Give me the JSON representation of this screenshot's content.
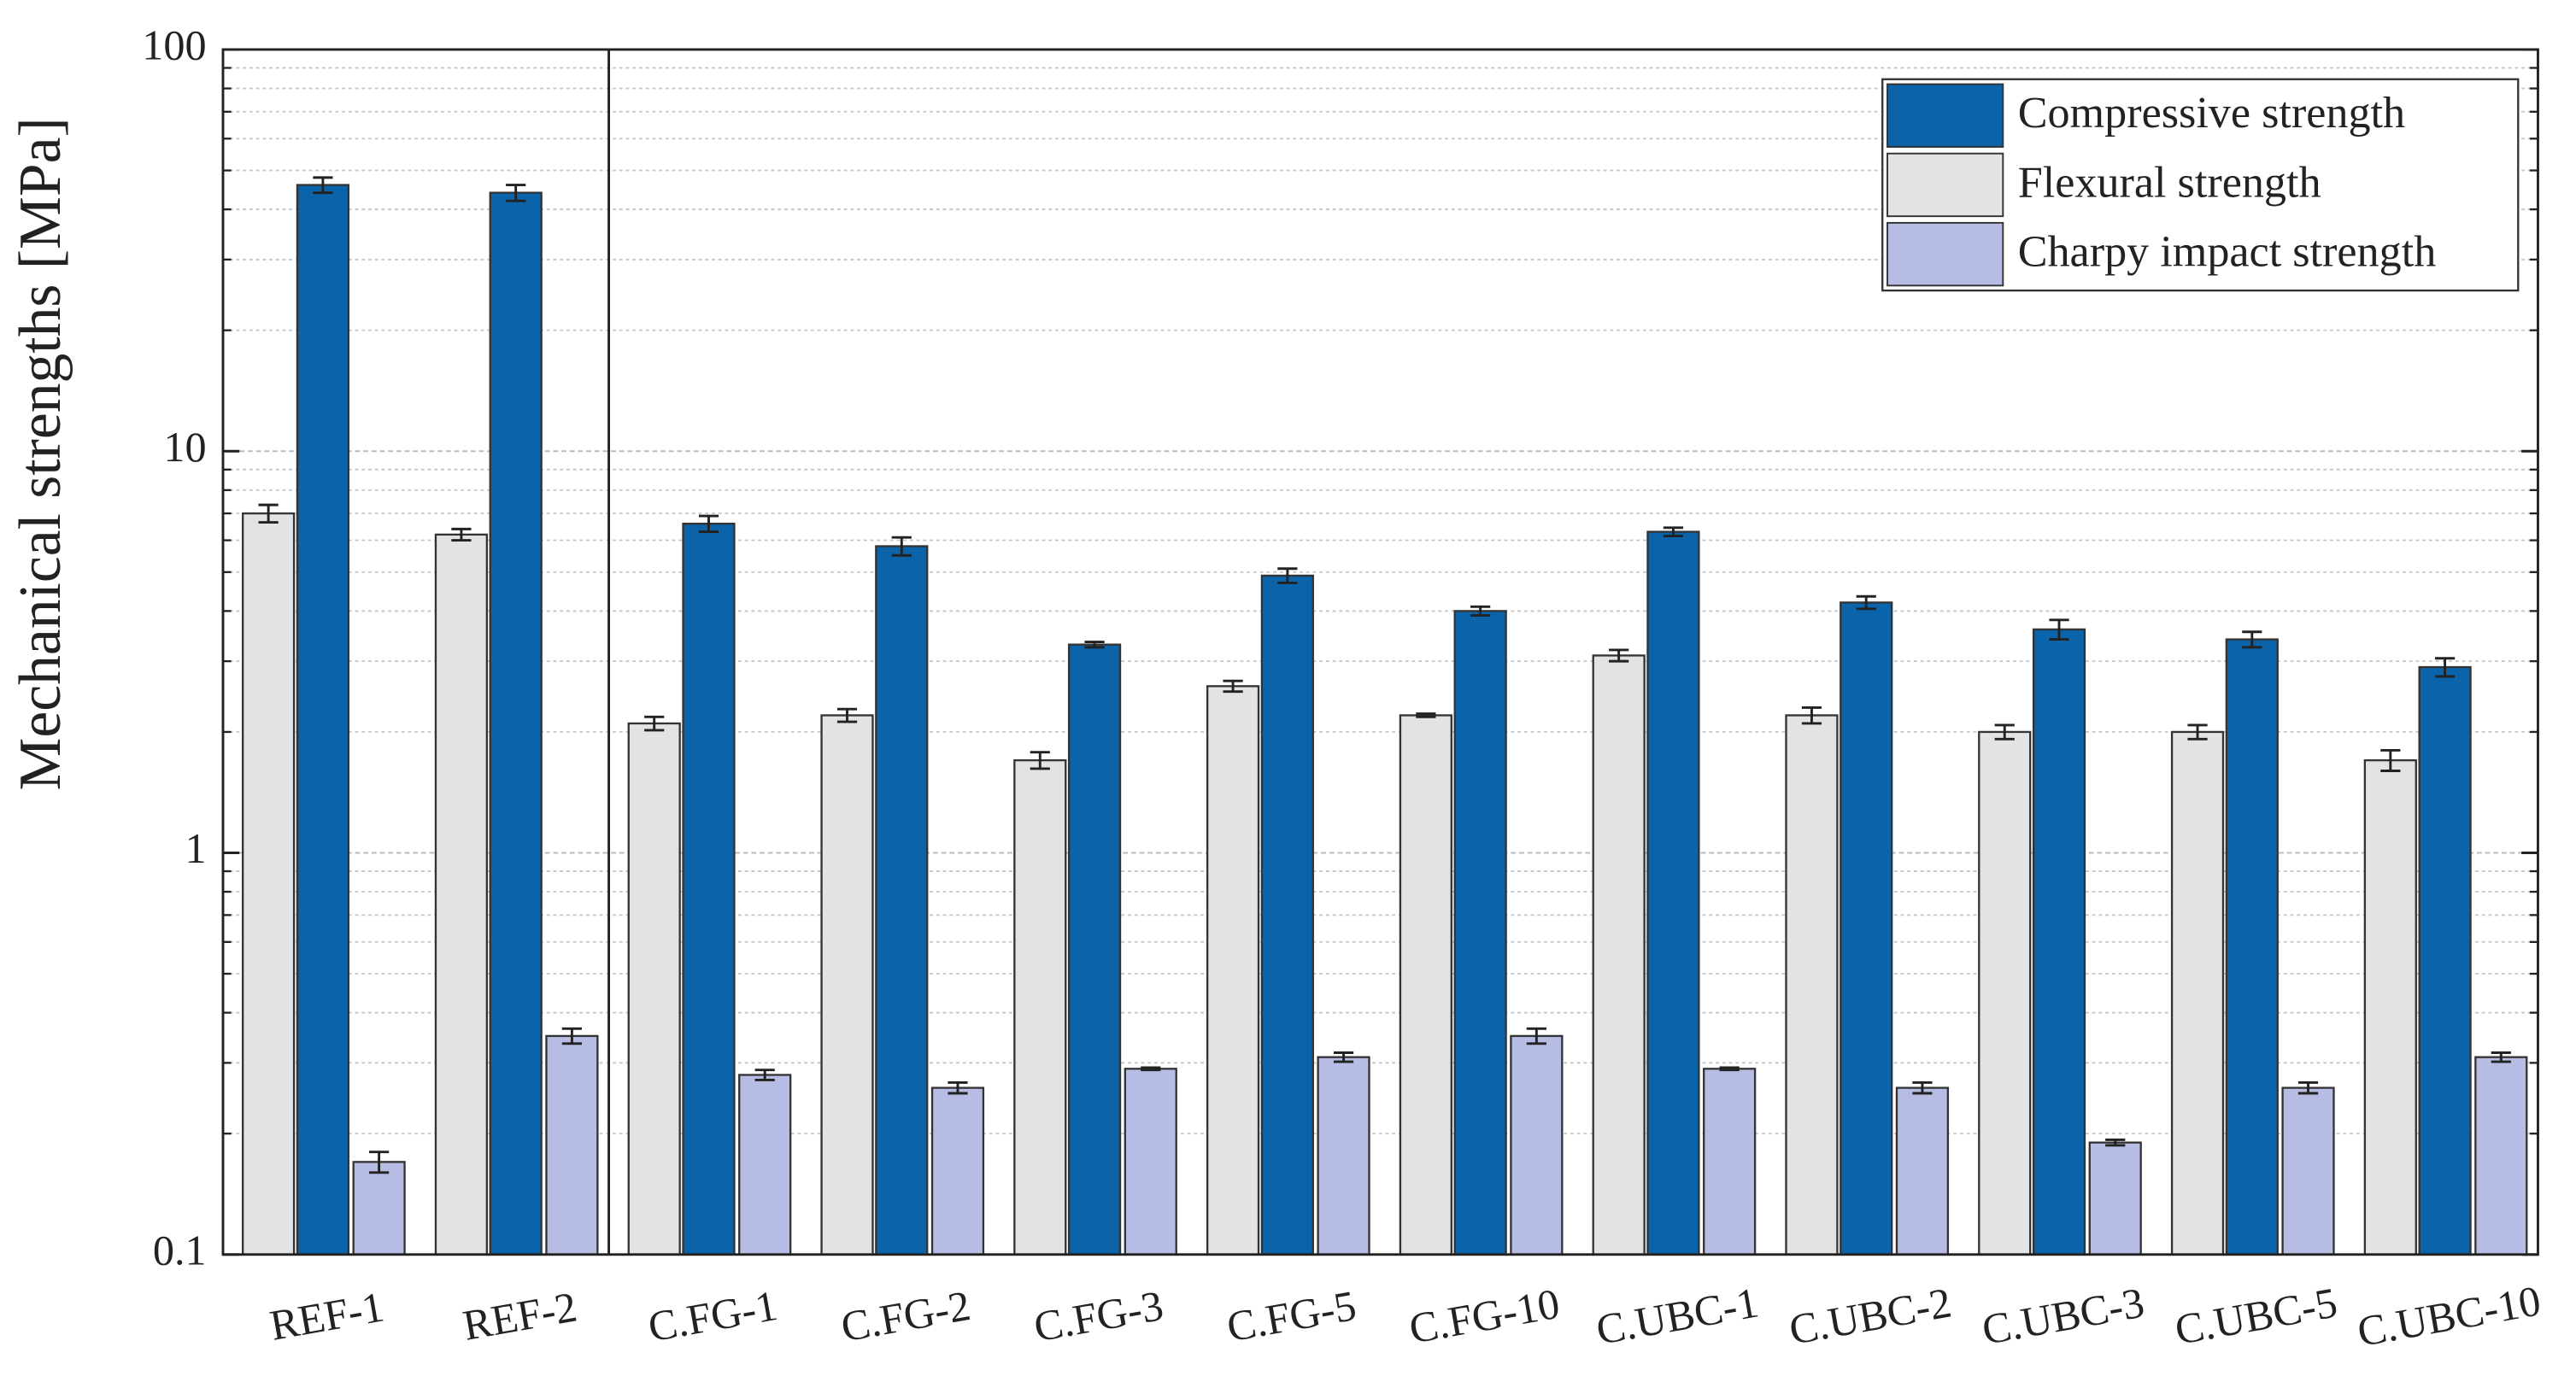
{
  "chart_data": {
    "type": "bar",
    "y_label": "Mechanical strengths [MPa]",
    "log_y": true,
    "grid": true,
    "legend_position": "upper right",
    "categories": [
      "REF-1",
      "REF-2",
      "C.FG-1",
      "C.FG-2",
      "C.FG-3",
      "C.FG-5",
      "C.FG-10",
      "C.UBC-1",
      "C.UBC-2",
      "C.UBC-3",
      "C.UBC-5",
      "C.UBC-10"
    ],
    "series": [
      {
        "name": "Compressive strength",
        "color": "#0b63a9",
        "values": [
          46,
          44,
          6.6,
          5.8,
          3.3,
          4.9,
          4.0,
          6.3,
          4.2,
          3.6,
          3.4,
          2.9
        ],
        "errors": [
          2,
          2,
          0.3,
          0.3,
          0.05,
          0.2,
          0.1,
          0.15,
          0.15,
          0.2,
          0.15,
          0.15
        ]
      },
      {
        "name": "Flexural strength",
        "color": "#e3e3e3",
        "values": [
          7.0,
          6.2,
          2.1,
          2.2,
          1.7,
          2.6,
          2.2,
          3.1,
          2.2,
          2.0,
          2.0,
          1.7
        ],
        "errors": [
          0.35,
          0.2,
          0.08,
          0.08,
          0.08,
          0.08,
          0.02,
          0.1,
          0.1,
          0.08,
          0.08,
          0.1
        ]
      },
      {
        "name": "Charpy impact strength",
        "color": "#b6bce4",
        "values": [
          0.17,
          0.35,
          0.28,
          0.26,
          0.29,
          0.31,
          0.35,
          0.29,
          0.26,
          0.19,
          0.26,
          0.31
        ],
        "errors": [
          0.01,
          0.015,
          0.008,
          0.008,
          0.002,
          0.008,
          0.015,
          0.002,
          0.008,
          0.003,
          0.008,
          0.008
        ]
      }
    ],
    "ylim": [
      0.1,
      100
    ],
    "yticks": [
      0.1,
      1,
      10,
      100
    ],
    "yminor_ticks": [
      0.2,
      0.3,
      0.4,
      0.5,
      0.6,
      0.7,
      0.8,
      0.9,
      2,
      3,
      4,
      5,
      6,
      7,
      8,
      9,
      20,
      30,
      40,
      50,
      60,
      70,
      80,
      90
    ]
  }
}
